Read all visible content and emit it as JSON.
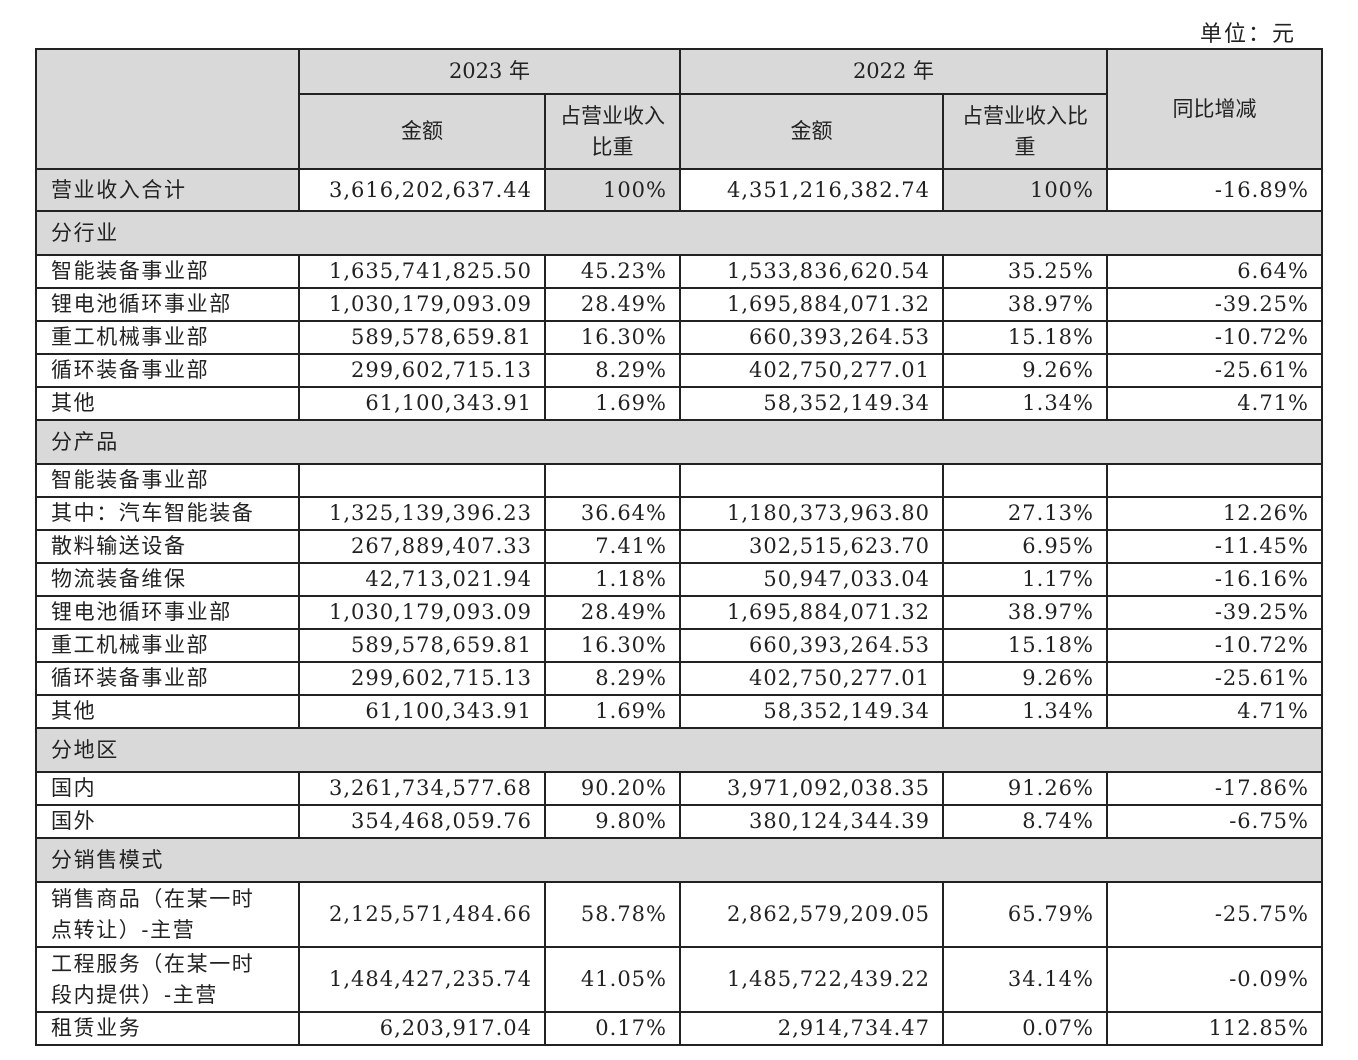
{
  "unit": "单位：元",
  "header": {
    "year_2023": "2023 年",
    "year_2022": "2022 年",
    "amount_2023": "金额",
    "share_2023": "占营业收入比重",
    "amount_2022": "金额",
    "share_2022": "占营业收入比重",
    "change": "同比增减"
  },
  "total": [
    "营业收入合计",
    "3,616,202,637.44",
    "100%",
    "4,351,216,382.74",
    "100%",
    "-16.89%"
  ],
  "sections": [
    {
      "title": "分行业",
      "rows": [
        [
          "智能装备事业部",
          "1,635,741,825.50",
          "45.23%",
          "1,533,836,620.54",
          "35.25%",
          "6.64%"
        ],
        [
          "锂电池循环事业部",
          "1,030,179,093.09",
          "28.49%",
          "1,695,884,071.32",
          "38.97%",
          "-39.25%"
        ],
        [
          "重工机械事业部",
          "589,578,659.81",
          "16.30%",
          "660,393,264.53",
          "15.18%",
          "-10.72%"
        ],
        [
          "循环装备事业部",
          "299,602,715.13",
          "8.29%",
          "402,750,277.01",
          "9.26%",
          "-25.61%"
        ],
        [
          "其他",
          "61,100,343.91",
          "1.69%",
          "58,352,149.34",
          "1.34%",
          "4.71%"
        ]
      ]
    },
    {
      "title": "分产品",
      "rows": [
        [
          "智能装备事业部"
        ],
        [
          "其中：汽车智能装备",
          "1,325,139,396.23",
          "36.64%",
          "1,180,373,963.80",
          "27.13%",
          "12.26%"
        ],
        [
          "散料输送设备",
          "267,889,407.33",
          "7.41%",
          "302,515,623.70",
          "6.95%",
          "-11.45%"
        ],
        [
          "物流装备维保",
          "42,713,021.94",
          "1.18%",
          "50,947,033.04",
          "1.17%",
          "-16.16%"
        ],
        [
          "锂电池循环事业部",
          "1,030,179,093.09",
          "28.49%",
          "1,695,884,071.32",
          "38.97%",
          "-39.25%"
        ],
        [
          "重工机械事业部",
          "589,578,659.81",
          "16.30%",
          "660,393,264.53",
          "15.18%",
          "-10.72%"
        ],
        [
          "循环装备事业部",
          "299,602,715.13",
          "8.29%",
          "402,750,277.01",
          "9.26%",
          "-25.61%"
        ],
        [
          "其他",
          "61,100,343.91",
          "1.69%",
          "58,352,149.34",
          "1.34%",
          "4.71%"
        ]
      ]
    },
    {
      "title": "分地区",
      "rows": [
        [
          "国内",
          "3,261,734,577.68",
          "90.20%",
          "3,971,092,038.35",
          "91.26%",
          "-17.86%"
        ],
        [
          "国外",
          "354,468,059.76",
          "9.80%",
          "380,124,344.39",
          "8.74%",
          "-6.75%"
        ]
      ]
    },
    {
      "title": "分销售模式",
      "rows": [
        [
          "销售商品（在某一时点转让）-主营",
          "2,125,571,484.66",
          "58.78%",
          "2,862,579,209.05",
          "65.79%",
          "-25.75%"
        ],
        [
          "工程服务（在某一时段内提供）-主营",
          "1,484,427,235.74",
          "41.05%",
          "1,485,722,439.22",
          "34.14%",
          "-0.09%"
        ],
        [
          "租赁业务",
          "6,203,917.04",
          "0.17%",
          "2,914,734.47",
          "0.07%",
          "112.85%"
        ]
      ]
    }
  ]
}
